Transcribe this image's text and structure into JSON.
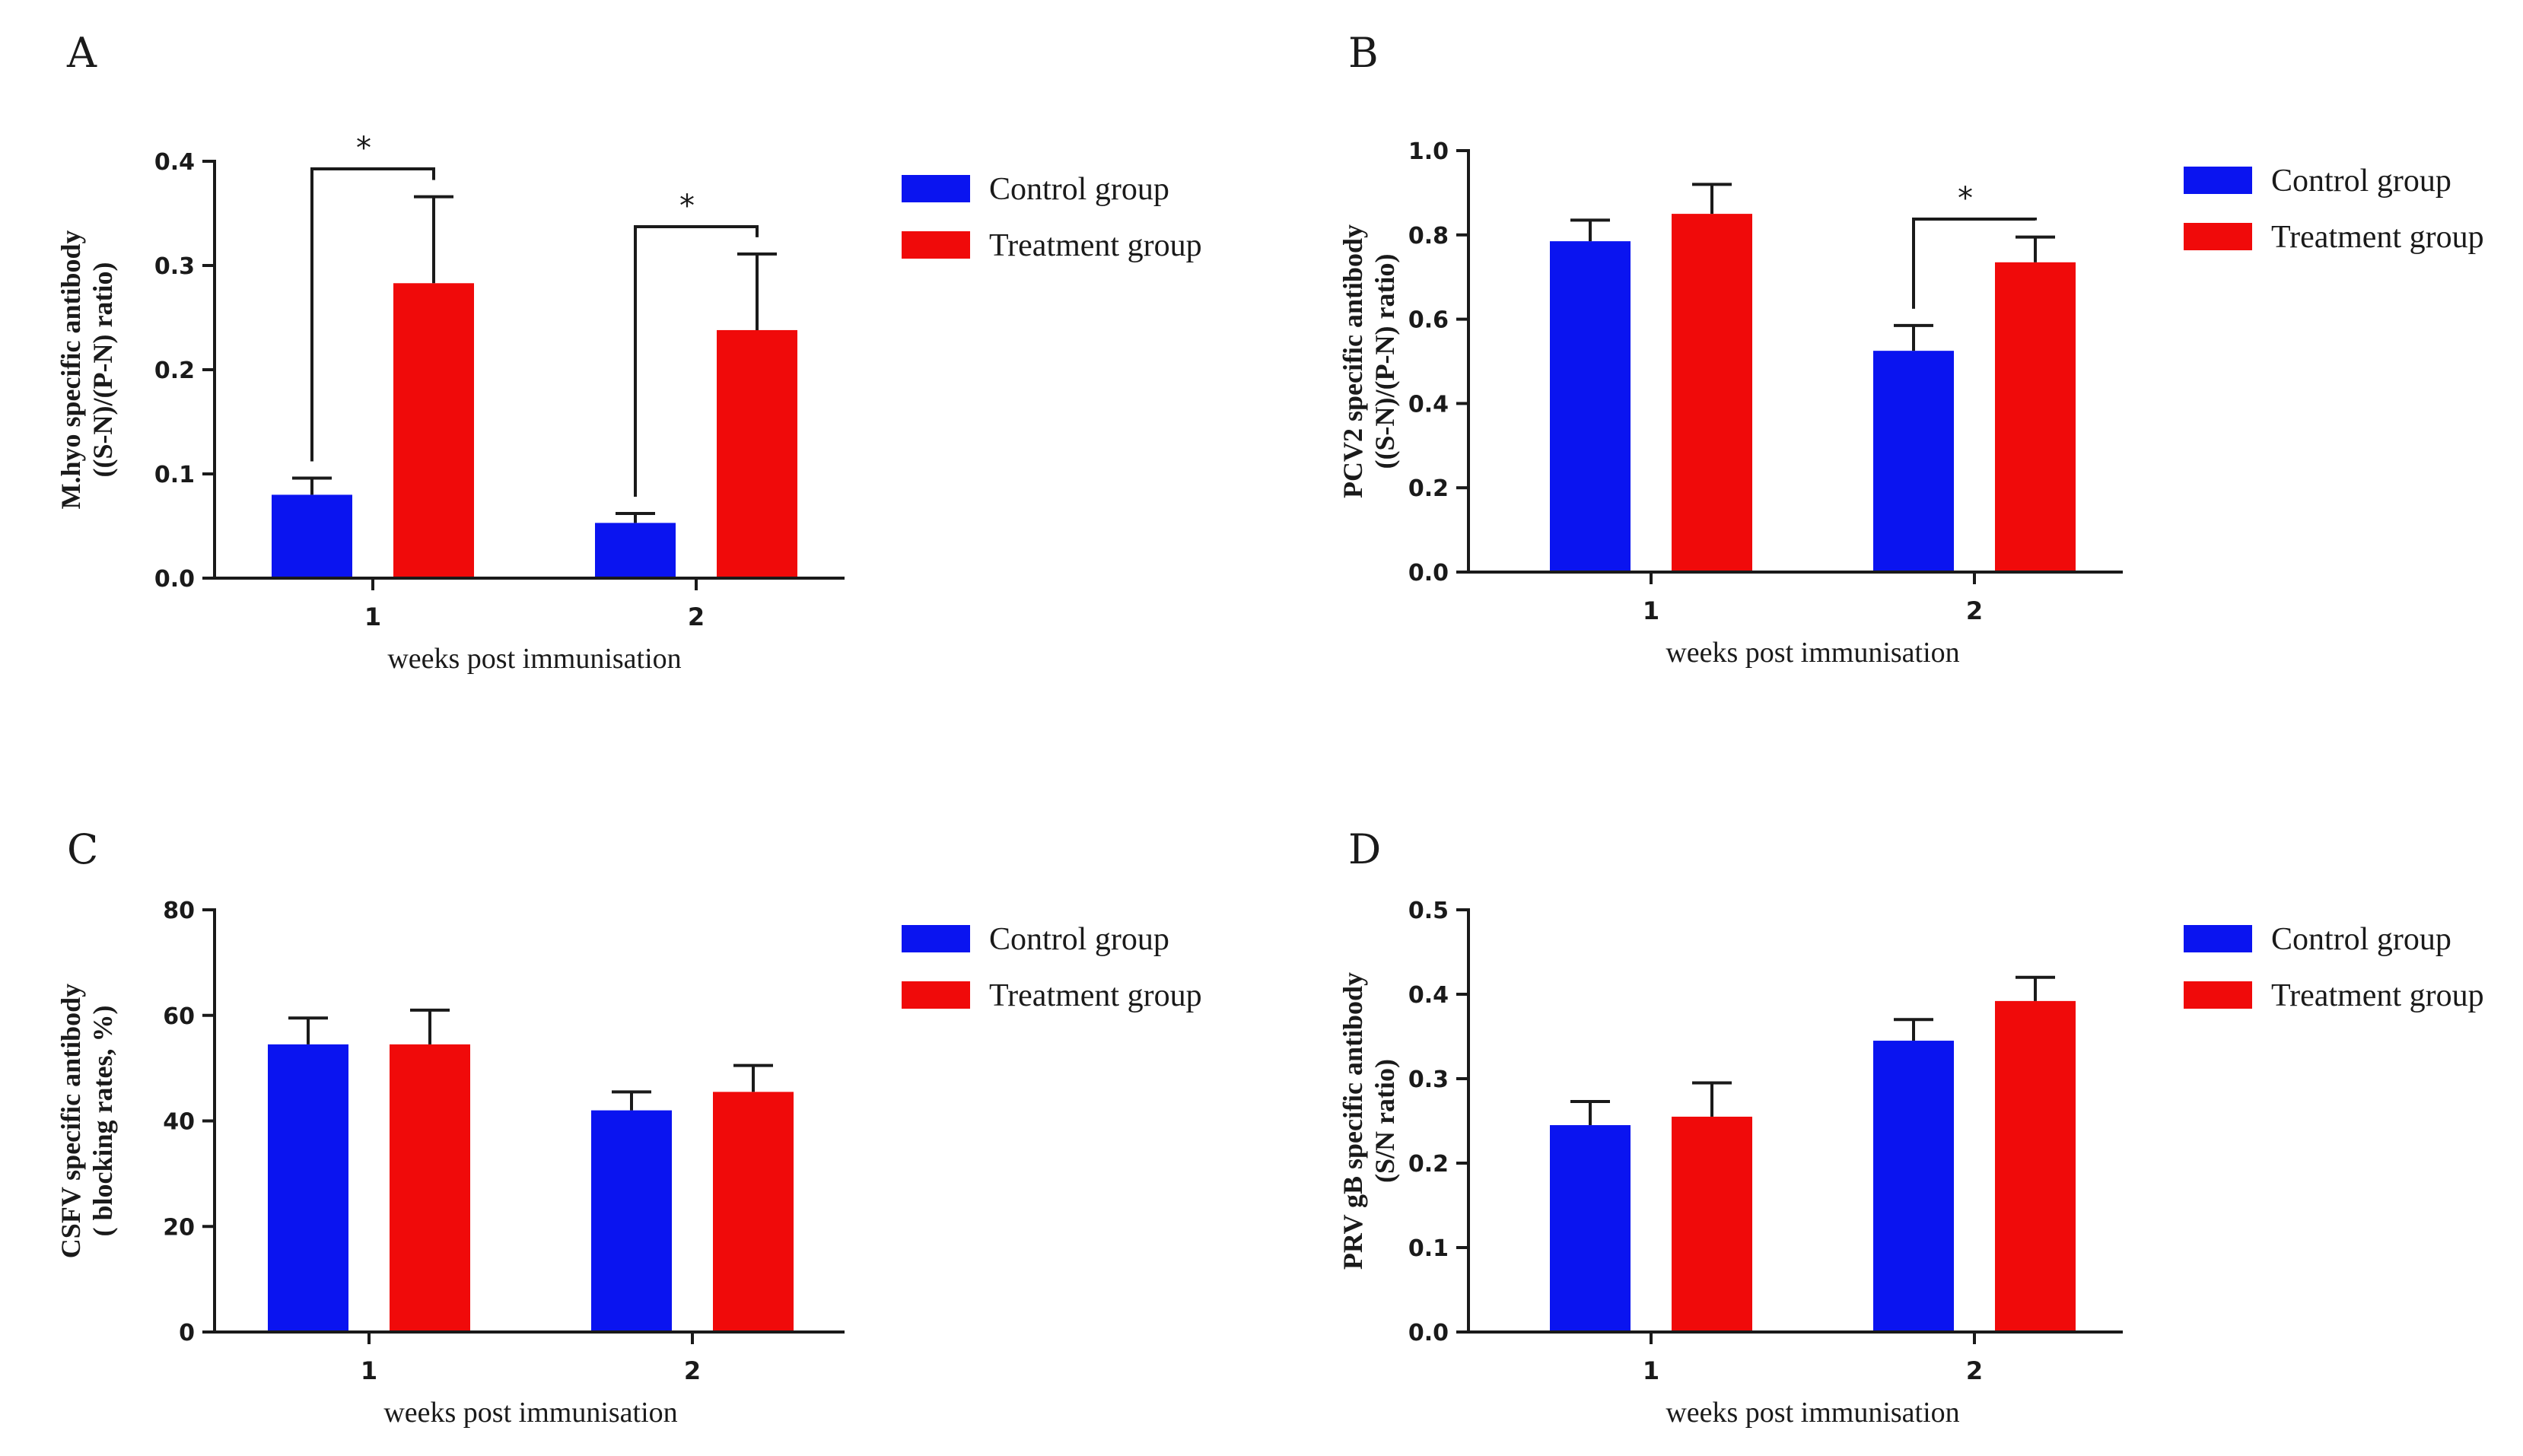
{
  "colors": {
    "control": "#0a14f0",
    "treatment": "#f00a0a",
    "axis": "#1a1a1a"
  },
  "chart_data": [
    {
      "panel": "A",
      "type": "bar",
      "categories": [
        "1",
        "2"
      ],
      "series": [
        {
          "name": "Control group",
          "values": [
            0.08,
            0.053
          ],
          "errors": [
            0.016,
            0.009
          ]
        },
        {
          "name": "Treatment group",
          "values": [
            0.283,
            0.238
          ],
          "errors": [
            0.083,
            0.073
          ]
        }
      ],
      "xlabel": "weeks post immunisation",
      "ylabel": [
        "M.hyo specific antibody",
        "((S-N)/(P-N) ratio)"
      ],
      "ylim": [
        0,
        0.4
      ],
      "yticks": [
        "0.0",
        "0.1",
        "0.2",
        "0.3",
        "0.4"
      ],
      "legend_position": "right",
      "significance": [
        {
          "category": "1",
          "label": "*"
        },
        {
          "category": "2",
          "label": "*"
        }
      ]
    },
    {
      "panel": "B",
      "type": "bar",
      "categories": [
        "1",
        "2"
      ],
      "series": [
        {
          "name": "Control group",
          "values": [
            0.785,
            0.525
          ],
          "errors": [
            0.05,
            0.06
          ]
        },
        {
          "name": "Treatment group",
          "values": [
            0.85,
            0.735
          ],
          "errors": [
            0.07,
            0.06
          ]
        }
      ],
      "xlabel": "weeks post immunisation",
      "ylabel": [
        "PCV2 specific antibody",
        "((S-N)/(P-N) ratio)"
      ],
      "ylim": [
        0,
        1.0
      ],
      "yticks": [
        "0.0",
        "0.2",
        "0.4",
        "0.6",
        "0.8",
        "1.0"
      ],
      "legend_position": "right",
      "significance": [
        {
          "category": "2",
          "label": "*"
        }
      ]
    },
    {
      "panel": "C",
      "type": "bar",
      "categories": [
        "1",
        "2"
      ],
      "series": [
        {
          "name": "Control group",
          "values": [
            54.5,
            42
          ],
          "errors": [
            5,
            3.5
          ]
        },
        {
          "name": "Treatment group",
          "values": [
            54.5,
            45.5
          ],
          "errors": [
            6.5,
            5
          ]
        }
      ],
      "xlabel": "weeks post immunisation",
      "ylabel": [
        "CSFV specific antibody",
        "( blocking rates, %)"
      ],
      "ylim": [
        0,
        80
      ],
      "yticks": [
        "0",
        "20",
        "40",
        "60",
        "80"
      ],
      "legend_position": "right",
      "significance": []
    },
    {
      "panel": "D",
      "type": "bar",
      "categories": [
        "1",
        "2"
      ],
      "series": [
        {
          "name": "Control group",
          "values": [
            0.245,
            0.345
          ],
          "errors": [
            0.028,
            0.025
          ]
        },
        {
          "name": "Treatment group",
          "values": [
            0.255,
            0.392
          ],
          "errors": [
            0.04,
            0.028
          ]
        }
      ],
      "xlabel": "weeks post immunisation",
      "ylabel": [
        "PRV gB specific antibody",
        "(S/N ratio)"
      ],
      "ylim": [
        0,
        0.5
      ],
      "yticks": [
        "0.0",
        "0.1",
        "0.2",
        "0.3",
        "0.4",
        "0.5"
      ],
      "legend_position": "right",
      "significance": []
    }
  ]
}
